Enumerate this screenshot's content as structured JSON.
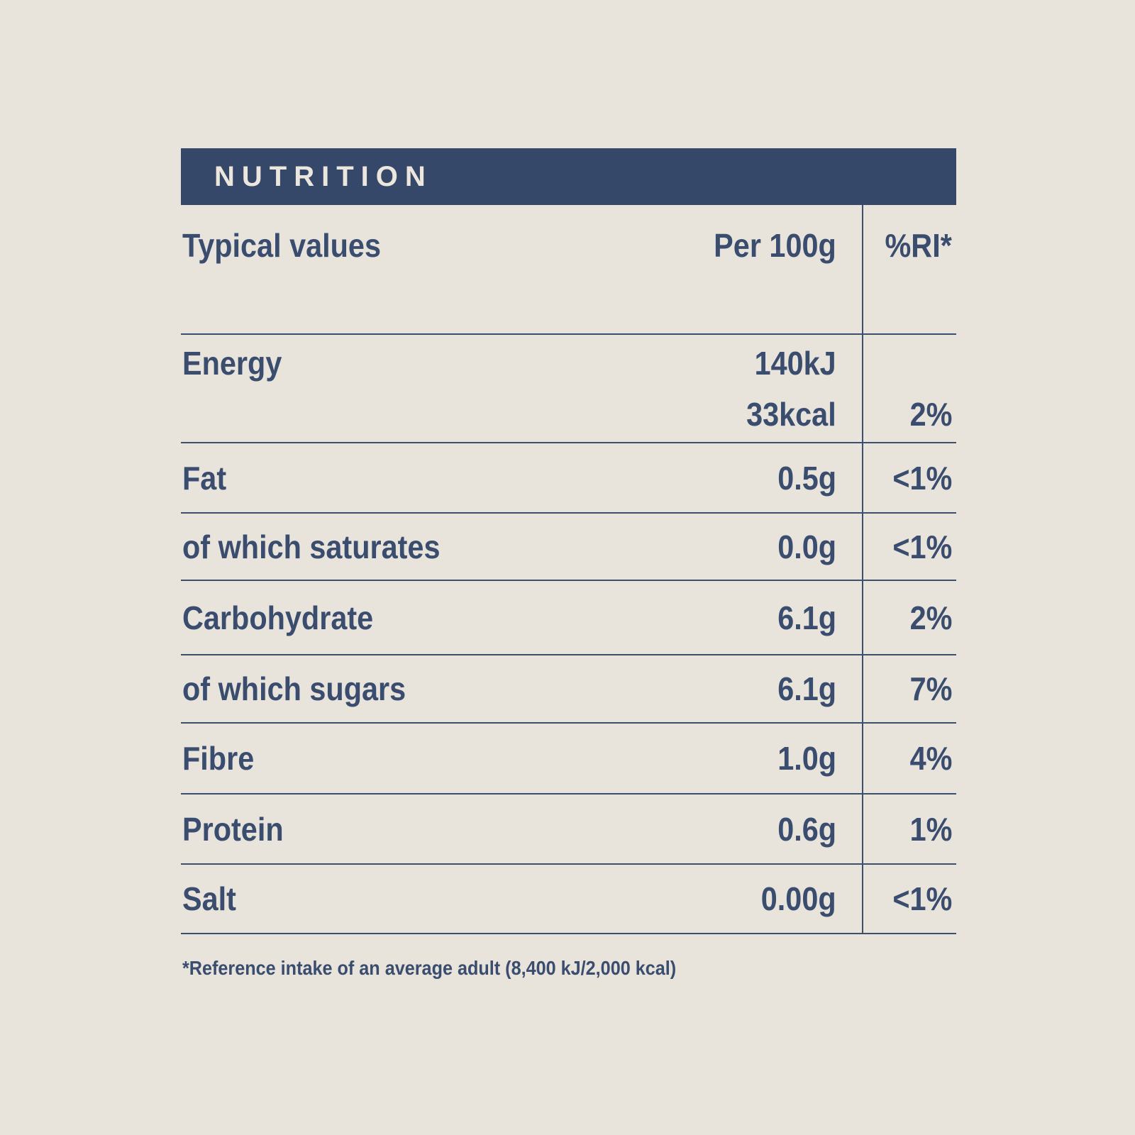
{
  "page": {
    "background_color": "#E8E4DC",
    "bar_color": "#35486A",
    "text_color": "#3A4D6E",
    "line_color": "#3C4F6F"
  },
  "table": {
    "title": "NUTRITION",
    "header": {
      "label": "Typical values",
      "value": "Per 100g",
      "ri": "%RI*"
    },
    "rows": [
      {
        "label": "Energy",
        "values": [
          "140kJ",
          "33kcal"
        ],
        "ri": "2%"
      },
      {
        "label": "Fat",
        "value": "0.5g",
        "ri": "<1%"
      },
      {
        "label": "of which saturates",
        "value": "0.0g",
        "ri": "<1%"
      },
      {
        "label": "Carbohydrate",
        "value": "6.1g",
        "ri": "2%"
      },
      {
        "label": "of which sugars",
        "value": "6.1g",
        "ri": "7%"
      },
      {
        "label": "Fibre",
        "value": "1.0g",
        "ri": "4%"
      },
      {
        "label": "Protein",
        "value": "0.6g",
        "ri": "1%"
      },
      {
        "label": "Salt",
        "value": "0.00g",
        "ri": "<1%"
      }
    ],
    "footnote": "*Reference intake of an average adult (8,400 kJ/2,000 kcal)"
  }
}
